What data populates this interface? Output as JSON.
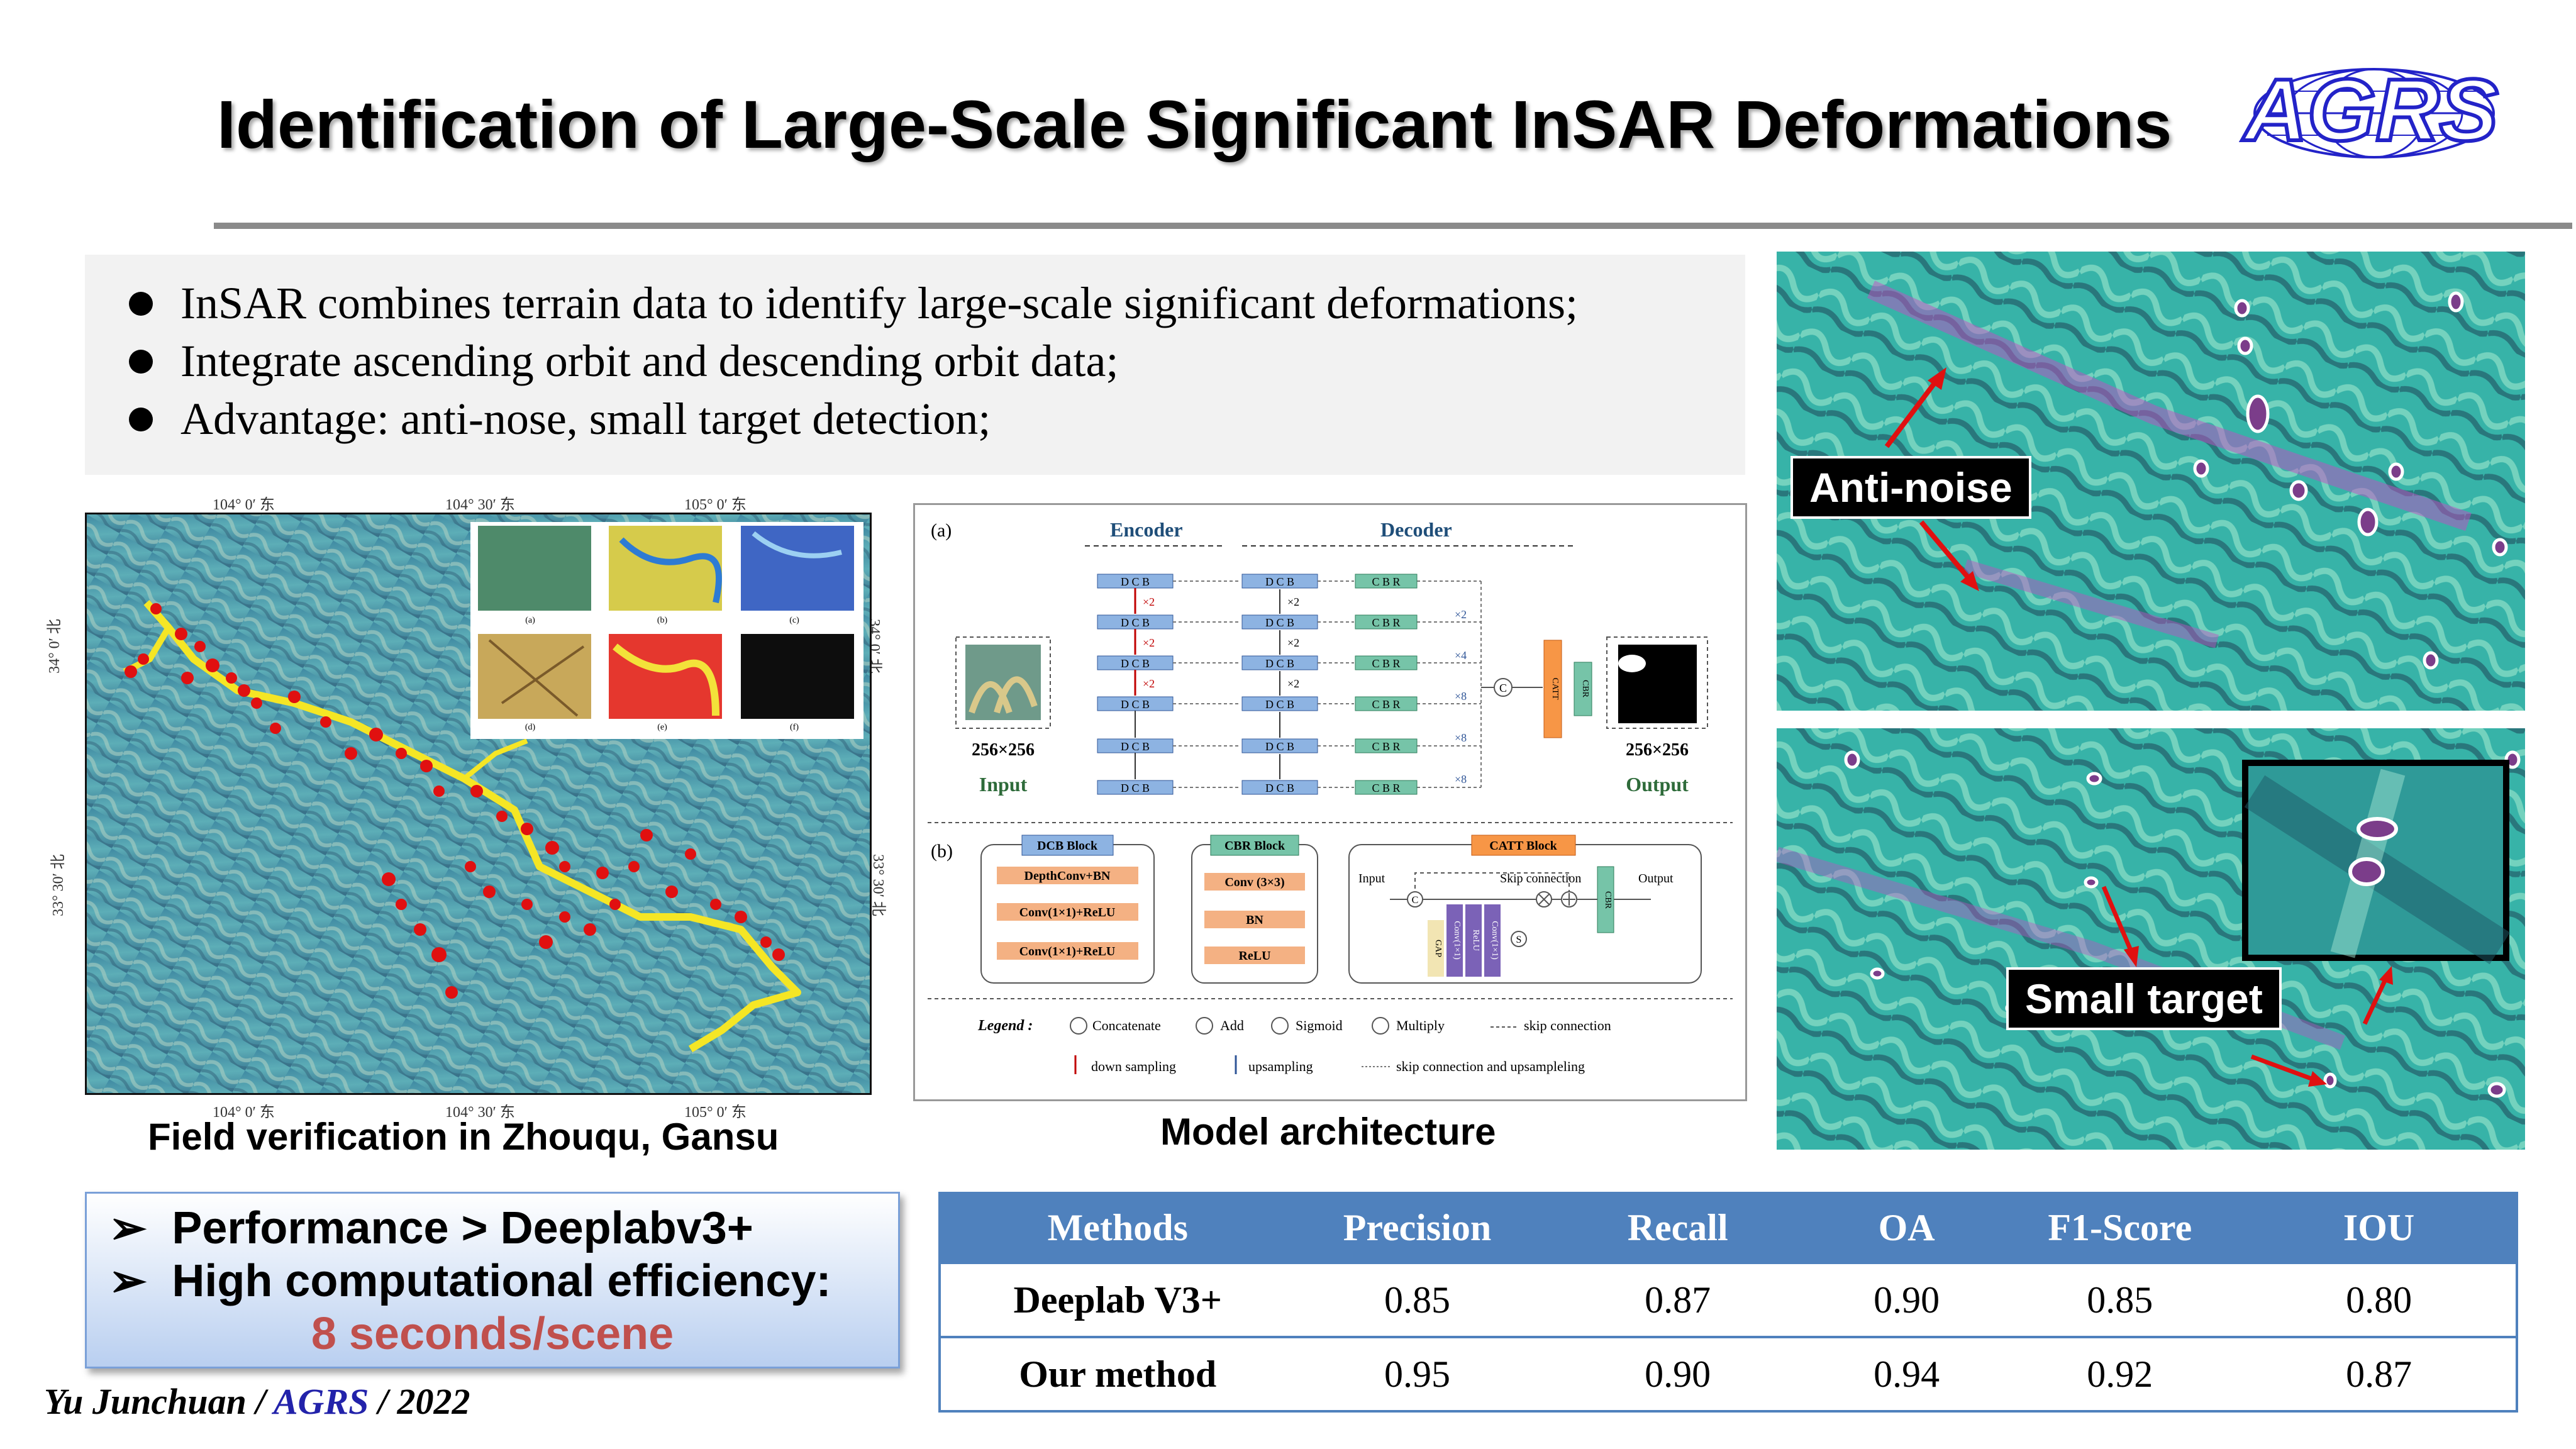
{
  "title": "Identification of Large-Scale Significant InSAR Deformations",
  "logo": {
    "text": "AGRS",
    "color": "#2323c8"
  },
  "bullets": [
    "InSAR combines terrain data to identify large-scale significant deformations;",
    "Integrate ascending orbit and descending orbit data;",
    "Advantage: anti-nose, small target detection;"
  ],
  "map": {
    "caption": "Field verification in Zhouqu, Gansu",
    "top_ticks": [
      "104° 0′ 东",
      "104° 30′ 东",
      "105° 0′ 东"
    ],
    "bottom_ticks": [
      "104° 0′ 东",
      "104° 30′ 东",
      "105° 0′ 东"
    ],
    "left_ticks": [
      "34° 0′ 北",
      "33° 30′ 北"
    ],
    "right_ticks": [
      "34° 0′ 北",
      "33° 30′ 北"
    ],
    "inset_labels": [
      "(a)",
      "(b)",
      "(c)",
      "(d)",
      "(e)",
      "(f)"
    ],
    "point_color": "#e01010",
    "river_color": "#f5e625"
  },
  "architecture": {
    "caption": "Model architecture",
    "panel_a": "(a)",
    "panel_b": "(b)",
    "encoder": "Encoder",
    "decoder": "Decoder",
    "input_size": "256×256",
    "input_label": "Input",
    "output_size": "256×256",
    "output_label": "Output",
    "dcb": "D C B",
    "cbr": "C B R",
    "catt": "CATT",
    "cbr_v": "CBR",
    "down_x2": "×2",
    "up_labels": [
      "×2",
      "×4",
      "×8",
      "×8",
      "×8"
    ],
    "dcb_block": {
      "title": "DCB Block",
      "items": [
        "DepthConv+BN",
        "Conv(1×1)+ReLU",
        "Conv(1×1)+ReLU"
      ]
    },
    "cbr_block": {
      "title": "CBR Block",
      "items": [
        "Conv (3×3)",
        "BN",
        "ReLU"
      ]
    },
    "catt_block": {
      "title": "CATT Block",
      "input": "Input",
      "skip": "Skip connection",
      "output": "Output",
      "inner": [
        "GAP",
        "Conv(1×1)",
        "ReLU",
        "Conv(1×1)"
      ],
      "cbr": "CBR",
      "s": "S",
      "c": "C"
    },
    "legend": {
      "title": "Legend :",
      "concatenate": "Concatenate",
      "add": "Add",
      "sigmoid": "Sigmoid",
      "multiply": "Multiply",
      "skip": "skip connection",
      "down": "down sampling",
      "up": "upsampling",
      "skipup": "skip connection and upsampleling"
    },
    "colors": {
      "dcb": "#8db3e2",
      "cbr": "#76c4a8",
      "orange": "#f4b183",
      "catt": "#f79646"
    }
  },
  "images": {
    "anti_noise": "Anti-noise",
    "small_target": "Small target",
    "arrow_color": "#e01010"
  },
  "performance": {
    "line1": "Performance > Deeplabv3+",
    "line2": "High computational efficiency:",
    "line3": "8 seconds/scene",
    "marker": "➢"
  },
  "table": {
    "headers": [
      "Methods",
      "Precision",
      "Recall",
      "OA",
      "F1-Score",
      "IOU"
    ],
    "rows": [
      [
        "Deeplab V3+",
        "0.85",
        "0.87",
        "0.90",
        "0.85",
        "0.80"
      ],
      [
        "Our method",
        "0.95",
        "0.90",
        "0.94",
        "0.92",
        "0.87"
      ]
    ]
  },
  "footer": {
    "author": "Yu Junchuan /",
    "org": "AGRS",
    "year": "/ 2022"
  }
}
